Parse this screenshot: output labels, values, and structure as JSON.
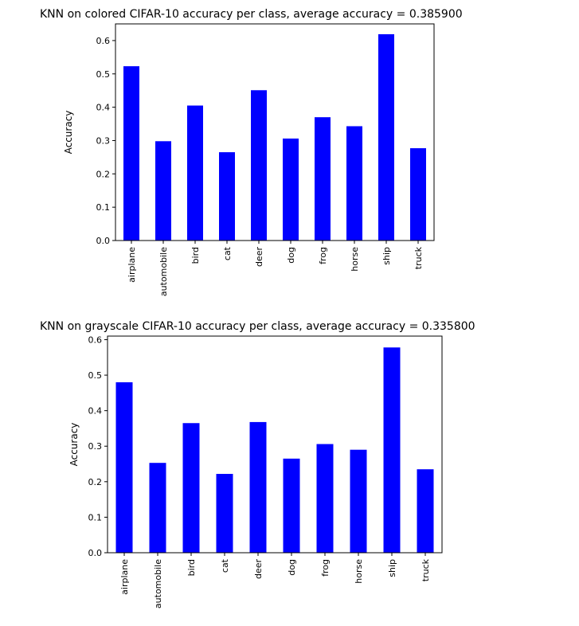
{
  "figure": {
    "bar_color": "#0000ff",
    "axis_color": "#000000"
  },
  "chart_data": [
    {
      "type": "bar",
      "title": "KNN on colored CIFAR-10 accuracy per class, average accuracy = 0.385900",
      "xlabel": "",
      "ylabel": "Accuracy",
      "categories": [
        "airplane",
        "automobile",
        "bird",
        "cat",
        "deer",
        "dog",
        "frog",
        "horse",
        "ship",
        "truck"
      ],
      "values": [
        0.523,
        0.298,
        0.405,
        0.265,
        0.451,
        0.306,
        0.37,
        0.343,
        0.619,
        0.277
      ],
      "ylim": [
        0,
        0.65
      ],
      "yticks": [
        0.0,
        0.1,
        0.2,
        0.3,
        0.4,
        0.5,
        0.6
      ],
      "ytick_labels": [
        "0.0",
        "0.1",
        "0.2",
        "0.3",
        "0.4",
        "0.5",
        "0.6"
      ],
      "grid": false,
      "legend": "none"
    },
    {
      "type": "bar",
      "title": "KNN on grayscale CIFAR-10 accuracy per class, average accuracy = 0.335800",
      "xlabel": "",
      "ylabel": "Accuracy",
      "categories": [
        "airplane",
        "automobile",
        "bird",
        "cat",
        "deer",
        "dog",
        "frog",
        "horse",
        "ship",
        "truck"
      ],
      "values": [
        0.48,
        0.253,
        0.365,
        0.222,
        0.368,
        0.265,
        0.306,
        0.29,
        0.578,
        0.235
      ],
      "ylim": [
        0,
        0.61
      ],
      "yticks": [
        0.0,
        0.1,
        0.2,
        0.3,
        0.4,
        0.5,
        0.6
      ],
      "ytick_labels": [
        "0.0",
        "0.1",
        "0.2",
        "0.3",
        "0.4",
        "0.5",
        "0.6"
      ],
      "grid": false,
      "legend": "none"
    }
  ]
}
